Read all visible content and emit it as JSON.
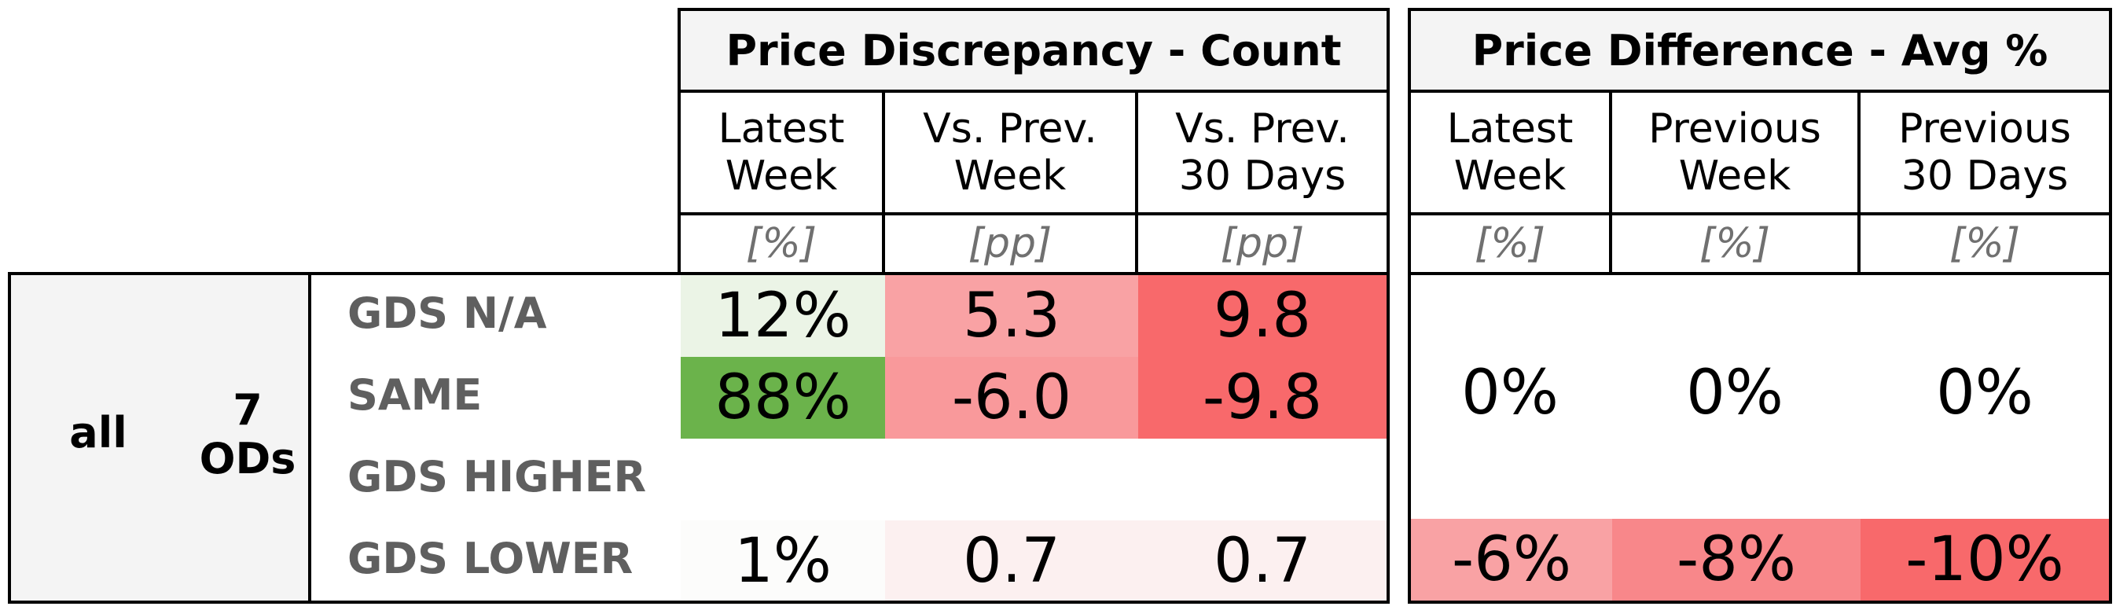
{
  "chart_data": {
    "type": "table",
    "groups": [
      {
        "title": "Price Discrepancy - Count",
        "columns": [
          {
            "label": "Latest\nWeek",
            "unit": "[%]"
          },
          {
            "label": "Vs. Prev.\nWeek",
            "unit": "[pp]"
          },
          {
            "label": "Vs. Prev.\n30 Days",
            "unit": "[pp]"
          }
        ]
      },
      {
        "title": "Price Difference - Avg %",
        "columns": [
          {
            "label": "Latest\nWeek",
            "unit": "[%]"
          },
          {
            "label": "Previous\nWeek",
            "unit": "[%]"
          },
          {
            "label": "Previous\n30 Days",
            "unit": "[%]"
          }
        ]
      }
    ],
    "row_group": {
      "scope": "all",
      "count": "7\nODs"
    },
    "rows": [
      {
        "label": "GDS N/A",
        "count": [
          {
            "text": "12%",
            "bg": "#ebf4e6"
          },
          {
            "text": "5.3",
            "bg": "#f9a2a4"
          },
          {
            "text": "9.8",
            "bg": "#f8696b"
          }
        ]
      },
      {
        "label": "SAME",
        "count": [
          {
            "text": "88%",
            "bg": "#6bb34b"
          },
          {
            "text": "-6.0",
            "bg": "#f9999b"
          },
          {
            "text": "-9.8",
            "bg": "#f8696b"
          }
        ]
      },
      {
        "label": "GDS HIGHER",
        "count": [
          {
            "text": "",
            "bg": "#ffffff"
          },
          {
            "text": "",
            "bg": "#ffffff"
          },
          {
            "text": "",
            "bg": "#ffffff"
          }
        ]
      },
      {
        "label": "GDS LOWER",
        "count": [
          {
            "text": "1%",
            "bg": "#fcfcfb"
          },
          {
            "text": "0.7",
            "bg": "#fcf0f0"
          },
          {
            "text": "0.7",
            "bg": "#fcf0f0"
          }
        ]
      }
    ],
    "avg_pct_same": [
      {
        "text": "0%",
        "bg": "#ffffff"
      },
      {
        "text": "0%",
        "bg": "#ffffff"
      },
      {
        "text": "0%",
        "bg": "#ffffff"
      }
    ],
    "avg_pct_gds_lower": [
      {
        "text": "-6%",
        "bg": "#f9a2a4"
      },
      {
        "text": "-8%",
        "bg": "#f8878a"
      },
      {
        "text": "-10%",
        "bg": "#f8696b"
      }
    ]
  }
}
